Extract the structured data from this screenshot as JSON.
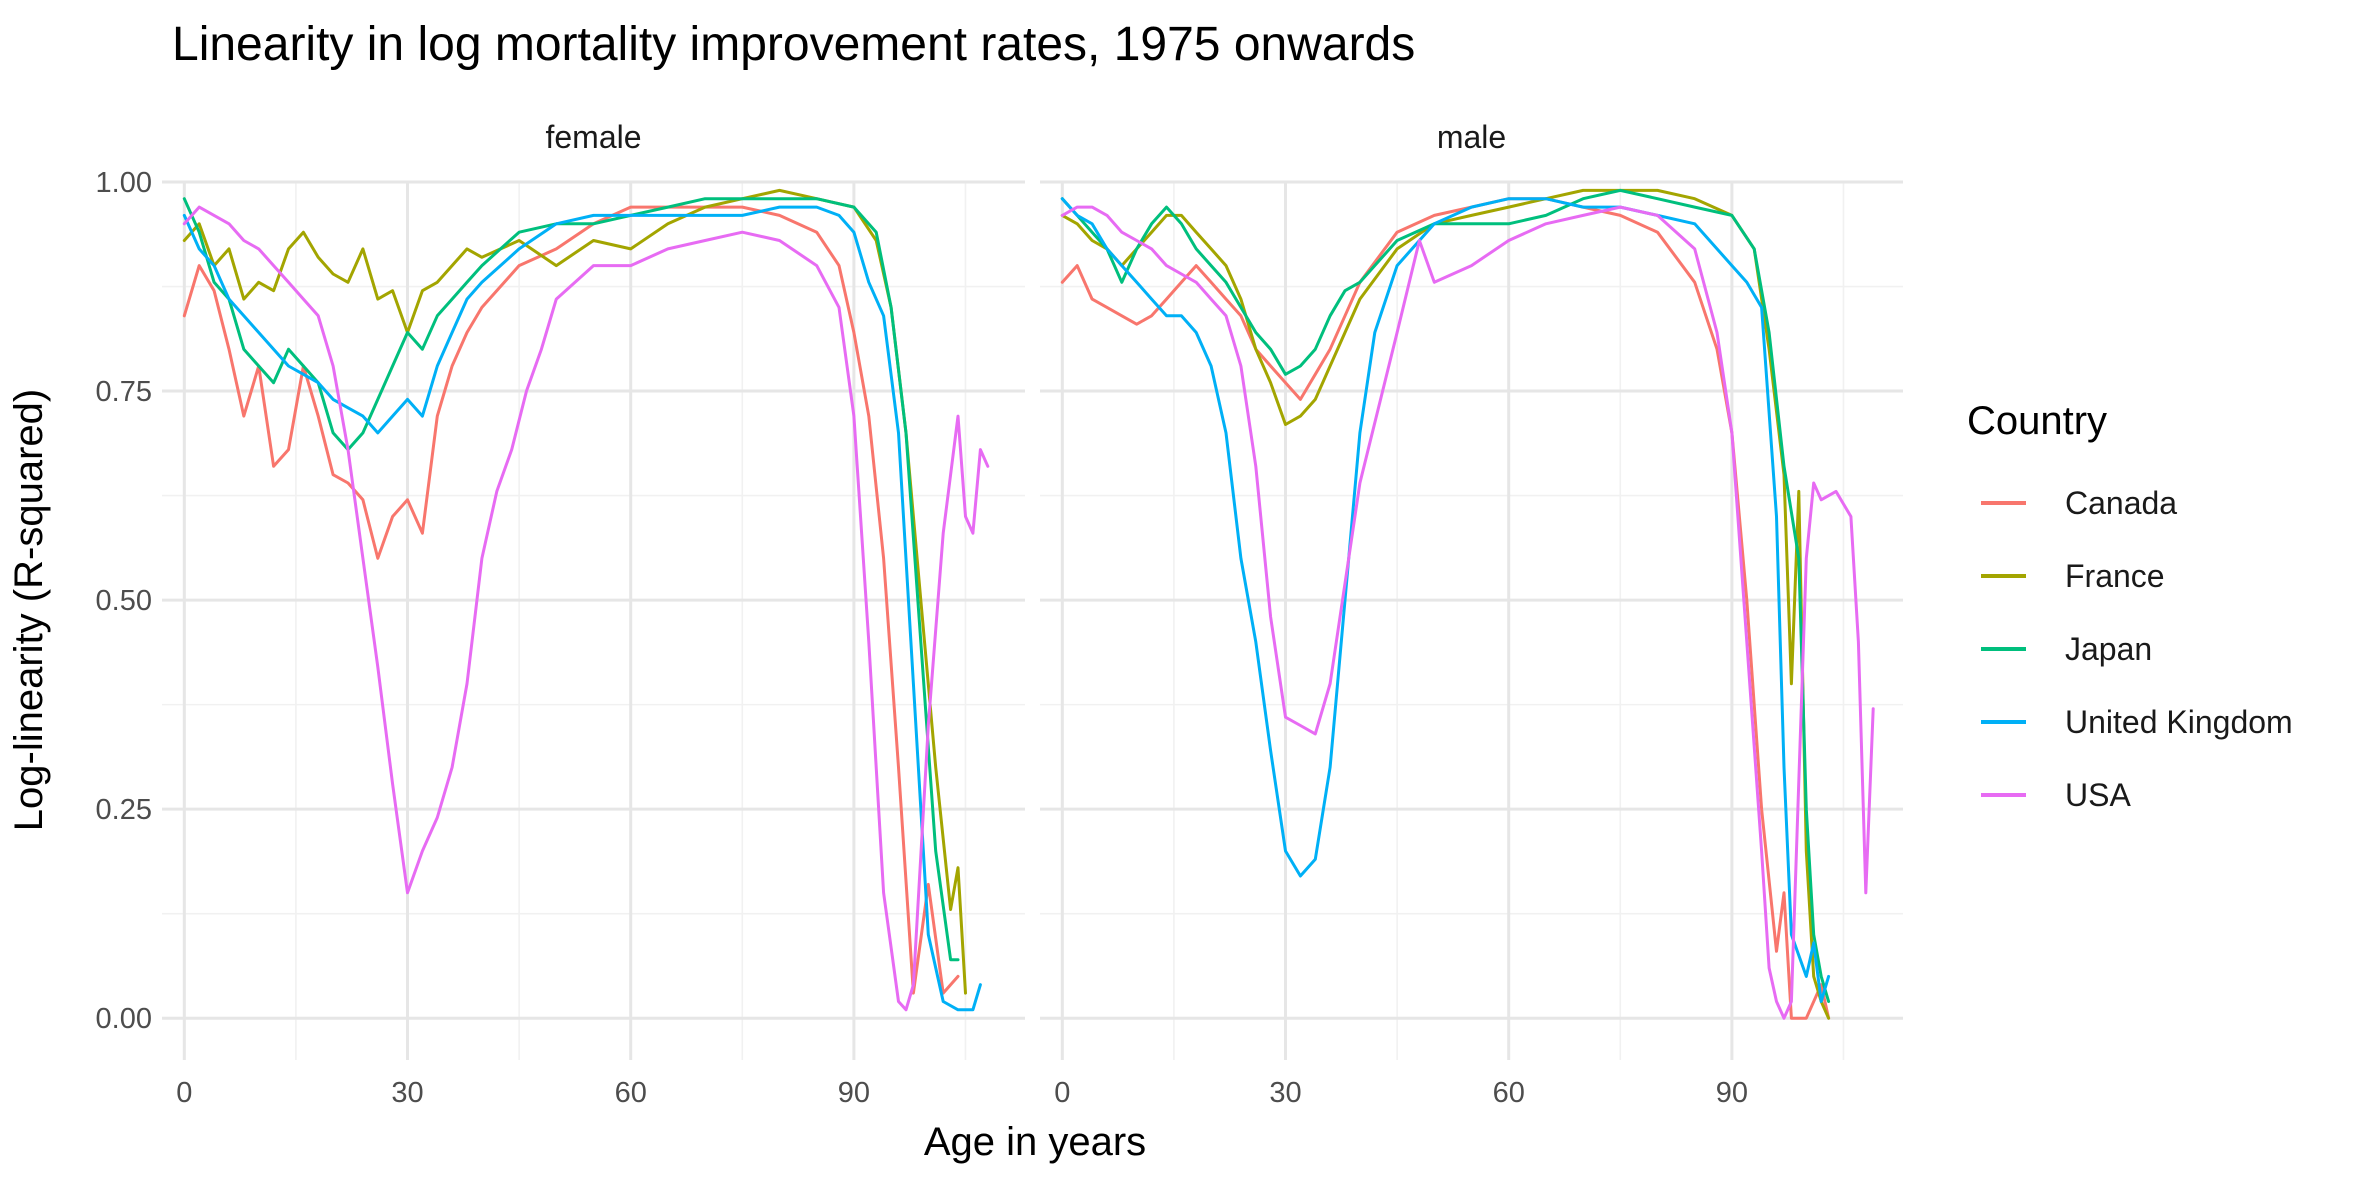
{
  "chart_data": {
    "type": "line",
    "title": "Linearity in log mortality improvement rates, 1975 onwards",
    "xlabel": "Age in years",
    "ylabel": "Log-linearity (R-squared)",
    "xlim": [
      -3,
      113
    ],
    "ylim": [
      -0.05,
      1.0
    ],
    "x_ticks": [
      "0",
      "30",
      "60",
      "90"
    ],
    "y_ticks": [
      "0.00",
      "0.25",
      "0.50",
      "0.75",
      "1.00"
    ],
    "grid": true,
    "legend": {
      "title": "Country",
      "position": "right",
      "entries": [
        "Canada",
        "France",
        "Japan",
        "United Kingdom",
        "USA"
      ]
    },
    "colors": {
      "Canada": "#F8766D",
      "France": "#A3A500",
      "Japan": "#00BF7D",
      "United Kingdom": "#00B0F6",
      "USA": "#E76BF3"
    },
    "panels": [
      {
        "label": "female",
        "series": [
          {
            "name": "Canada",
            "x": [
              0,
              2,
              4,
              6,
              8,
              10,
              12,
              14,
              16,
              18,
              20,
              22,
              24,
              26,
              28,
              30,
              32,
              34,
              36,
              38,
              40,
              45,
              50,
              55,
              60,
              65,
              70,
              75,
              80,
              85,
              88,
              90,
              92,
              94,
              96,
              98,
              100,
              102,
              104
            ],
            "y": [
              0.84,
              0.9,
              0.87,
              0.8,
              0.72,
              0.78,
              0.66,
              0.68,
              0.78,
              0.72,
              0.65,
              0.64,
              0.62,
              0.55,
              0.6,
              0.62,
              0.58,
              0.72,
              0.78,
              0.82,
              0.85,
              0.9,
              0.92,
              0.95,
              0.97,
              0.97,
              0.97,
              0.97,
              0.96,
              0.94,
              0.9,
              0.82,
              0.72,
              0.55,
              0.3,
              0.03,
              0.16,
              0.03,
              0.05
            ]
          },
          {
            "name": "France",
            "x": [
              0,
              2,
              4,
              6,
              8,
              10,
              12,
              14,
              16,
              18,
              20,
              22,
              24,
              26,
              28,
              30,
              32,
              34,
              36,
              38,
              40,
              45,
              50,
              55,
              60,
              65,
              70,
              75,
              80,
              85,
              90,
              93,
              95,
              97,
              99,
              101,
              103,
              104,
              105
            ],
            "y": [
              0.93,
              0.95,
              0.9,
              0.92,
              0.86,
              0.88,
              0.87,
              0.92,
              0.94,
              0.91,
              0.89,
              0.88,
              0.92,
              0.86,
              0.87,
              0.82,
              0.87,
              0.88,
              0.9,
              0.92,
              0.91,
              0.93,
              0.9,
              0.93,
              0.92,
              0.95,
              0.97,
              0.98,
              0.99,
              0.98,
              0.97,
              0.93,
              0.85,
              0.7,
              0.5,
              0.3,
              0.13,
              0.18,
              0.03
            ]
          },
          {
            "name": "Japan",
            "x": [
              0,
              2,
              4,
              6,
              8,
              10,
              12,
              14,
              16,
              18,
              20,
              22,
              24,
              26,
              28,
              30,
              32,
              34,
              36,
              38,
              40,
              45,
              50,
              55,
              60,
              65,
              70,
              75,
              80,
              85,
              90,
              93,
              95,
              97,
              99,
              101,
              103,
              104
            ],
            "y": [
              0.98,
              0.94,
              0.88,
              0.86,
              0.8,
              0.78,
              0.76,
              0.8,
              0.78,
              0.76,
              0.7,
              0.68,
              0.7,
              0.74,
              0.78,
              0.82,
              0.8,
              0.84,
              0.86,
              0.88,
              0.9,
              0.94,
              0.95,
              0.95,
              0.96,
              0.97,
              0.98,
              0.98,
              0.98,
              0.98,
              0.97,
              0.94,
              0.85,
              0.7,
              0.45,
              0.2,
              0.07,
              0.07
            ]
          },
          {
            "name": "United Kingdom",
            "x": [
              0,
              2,
              4,
              6,
              8,
              10,
              12,
              14,
              16,
              18,
              20,
              22,
              24,
              26,
              28,
              30,
              32,
              34,
              36,
              38,
              40,
              45,
              50,
              55,
              60,
              65,
              70,
              75,
              80,
              85,
              88,
              90,
              92,
              94,
              96,
              98,
              100,
              102,
              104,
              106,
              107
            ],
            "y": [
              0.96,
              0.92,
              0.9,
              0.86,
              0.84,
              0.82,
              0.8,
              0.78,
              0.77,
              0.76,
              0.74,
              0.73,
              0.72,
              0.7,
              0.72,
              0.74,
              0.72,
              0.78,
              0.82,
              0.86,
              0.88,
              0.92,
              0.95,
              0.96,
              0.96,
              0.96,
              0.96,
              0.96,
              0.97,
              0.97,
              0.96,
              0.94,
              0.88,
              0.84,
              0.7,
              0.4,
              0.1,
              0.02,
              0.01,
              0.01,
              0.04
            ]
          },
          {
            "name": "USA",
            "x": [
              0,
              2,
              4,
              6,
              8,
              10,
              12,
              14,
              16,
              18,
              20,
              22,
              24,
              26,
              28,
              30,
              32,
              34,
              36,
              38,
              40,
              42,
              44,
              46,
              48,
              50,
              55,
              60,
              65,
              70,
              75,
              80,
              85,
              88,
              90,
              92,
              94,
              96,
              97,
              98,
              100,
              102,
              104,
              105,
              106,
              107,
              108
            ],
            "y": [
              0.95,
              0.97,
              0.96,
              0.95,
              0.93,
              0.92,
              0.9,
              0.88,
              0.86,
              0.84,
              0.78,
              0.68,
              0.55,
              0.42,
              0.28,
              0.15,
              0.2,
              0.24,
              0.3,
              0.4,
              0.55,
              0.63,
              0.68,
              0.75,
              0.8,
              0.86,
              0.9,
              0.9,
              0.92,
              0.93,
              0.94,
              0.93,
              0.9,
              0.85,
              0.72,
              0.45,
              0.15,
              0.02,
              0.01,
              0.04,
              0.35,
              0.58,
              0.72,
              0.6,
              0.58,
              0.68,
              0.66
            ]
          }
        ]
      },
      {
        "label": "male",
        "series": [
          {
            "name": "Canada",
            "x": [
              0,
              2,
              4,
              6,
              8,
              10,
              12,
              14,
              16,
              18,
              20,
              22,
              24,
              26,
              28,
              30,
              32,
              34,
              36,
              38,
              40,
              45,
              50,
              55,
              60,
              65,
              70,
              75,
              80,
              85,
              88,
              90,
              92,
              94,
              96,
              97,
              98,
              100,
              102,
              103
            ],
            "y": [
              0.88,
              0.9,
              0.86,
              0.85,
              0.84,
              0.83,
              0.84,
              0.86,
              0.88,
              0.9,
              0.88,
              0.86,
              0.84,
              0.8,
              0.78,
              0.76,
              0.74,
              0.77,
              0.8,
              0.84,
              0.88,
              0.94,
              0.96,
              0.97,
              0.98,
              0.98,
              0.97,
              0.96,
              0.94,
              0.88,
              0.8,
              0.7,
              0.5,
              0.25,
              0.08,
              0.15,
              0.0,
              0.0,
              0.04,
              0.0
            ]
          },
          {
            "name": "France",
            "x": [
              0,
              2,
              4,
              6,
              8,
              10,
              12,
              14,
              16,
              18,
              20,
              22,
              24,
              26,
              28,
              30,
              32,
              34,
              36,
              38,
              40,
              45,
              50,
              55,
              60,
              65,
              70,
              75,
              80,
              85,
              90,
              93,
              95,
              97,
              98,
              99,
              100,
              101,
              102,
              103
            ],
            "y": [
              0.96,
              0.95,
              0.93,
              0.92,
              0.9,
              0.92,
              0.94,
              0.96,
              0.96,
              0.94,
              0.92,
              0.9,
              0.86,
              0.8,
              0.76,
              0.71,
              0.72,
              0.74,
              0.78,
              0.82,
              0.86,
              0.92,
              0.95,
              0.96,
              0.97,
              0.98,
              0.99,
              0.99,
              0.99,
              0.98,
              0.96,
              0.92,
              0.8,
              0.65,
              0.4,
              0.63,
              0.2,
              0.05,
              0.02,
              0.0
            ]
          },
          {
            "name": "Japan",
            "x": [
              0,
              2,
              4,
              6,
              8,
              10,
              12,
              14,
              16,
              18,
              20,
              22,
              24,
              26,
              28,
              30,
              32,
              34,
              36,
              38,
              40,
              45,
              50,
              55,
              60,
              65,
              70,
              75,
              80,
              85,
              90,
              93,
              95,
              97,
              99,
              100,
              101,
              102,
              103
            ],
            "y": [
              0.98,
              0.96,
              0.94,
              0.92,
              0.88,
              0.92,
              0.95,
              0.97,
              0.95,
              0.92,
              0.9,
              0.88,
              0.85,
              0.82,
              0.8,
              0.77,
              0.78,
              0.8,
              0.84,
              0.87,
              0.88,
              0.93,
              0.95,
              0.95,
              0.95,
              0.96,
              0.98,
              0.99,
              0.98,
              0.97,
              0.96,
              0.92,
              0.82,
              0.66,
              0.55,
              0.25,
              0.1,
              0.05,
              0.02
            ]
          },
          {
            "name": "United Kingdom",
            "x": [
              0,
              2,
              4,
              6,
              8,
              10,
              12,
              14,
              16,
              18,
              20,
              22,
              24,
              26,
              28,
              30,
              32,
              34,
              36,
              38,
              40,
              42,
              45,
              50,
              55,
              60,
              65,
              70,
              75,
              80,
              85,
              90,
              92,
              94,
              96,
              97,
              98,
              100,
              101,
              102,
              103
            ],
            "y": [
              0.98,
              0.96,
              0.95,
              0.92,
              0.9,
              0.88,
              0.86,
              0.84,
              0.84,
              0.82,
              0.78,
              0.7,
              0.55,
              0.45,
              0.32,
              0.2,
              0.17,
              0.19,
              0.3,
              0.5,
              0.7,
              0.82,
              0.9,
              0.95,
              0.97,
              0.98,
              0.98,
              0.97,
              0.97,
              0.96,
              0.95,
              0.9,
              0.88,
              0.85,
              0.6,
              0.3,
              0.1,
              0.05,
              0.09,
              0.02,
              0.05
            ]
          },
          {
            "name": "USA",
            "x": [
              0,
              2,
              4,
              6,
              8,
              10,
              12,
              14,
              16,
              18,
              20,
              22,
              24,
              26,
              28,
              30,
              32,
              34,
              36,
              38,
              40,
              45,
              48,
              50,
              55,
              60,
              65,
              70,
              75,
              80,
              85,
              88,
              90,
              92,
              94,
              95,
              96,
              97,
              98,
              100,
              101,
              102,
              104,
              106,
              107,
              108,
              109
            ],
            "y": [
              0.96,
              0.97,
              0.97,
              0.96,
              0.94,
              0.93,
              0.92,
              0.9,
              0.89,
              0.88,
              0.86,
              0.84,
              0.78,
              0.66,
              0.48,
              0.36,
              0.35,
              0.34,
              0.4,
              0.52,
              0.64,
              0.82,
              0.93,
              0.88,
              0.9,
              0.93,
              0.95,
              0.96,
              0.97,
              0.96,
              0.92,
              0.82,
              0.7,
              0.45,
              0.2,
              0.06,
              0.02,
              0.0,
              0.02,
              0.55,
              0.64,
              0.62,
              0.63,
              0.6,
              0.45,
              0.15,
              0.37
            ]
          }
        ]
      }
    ]
  }
}
